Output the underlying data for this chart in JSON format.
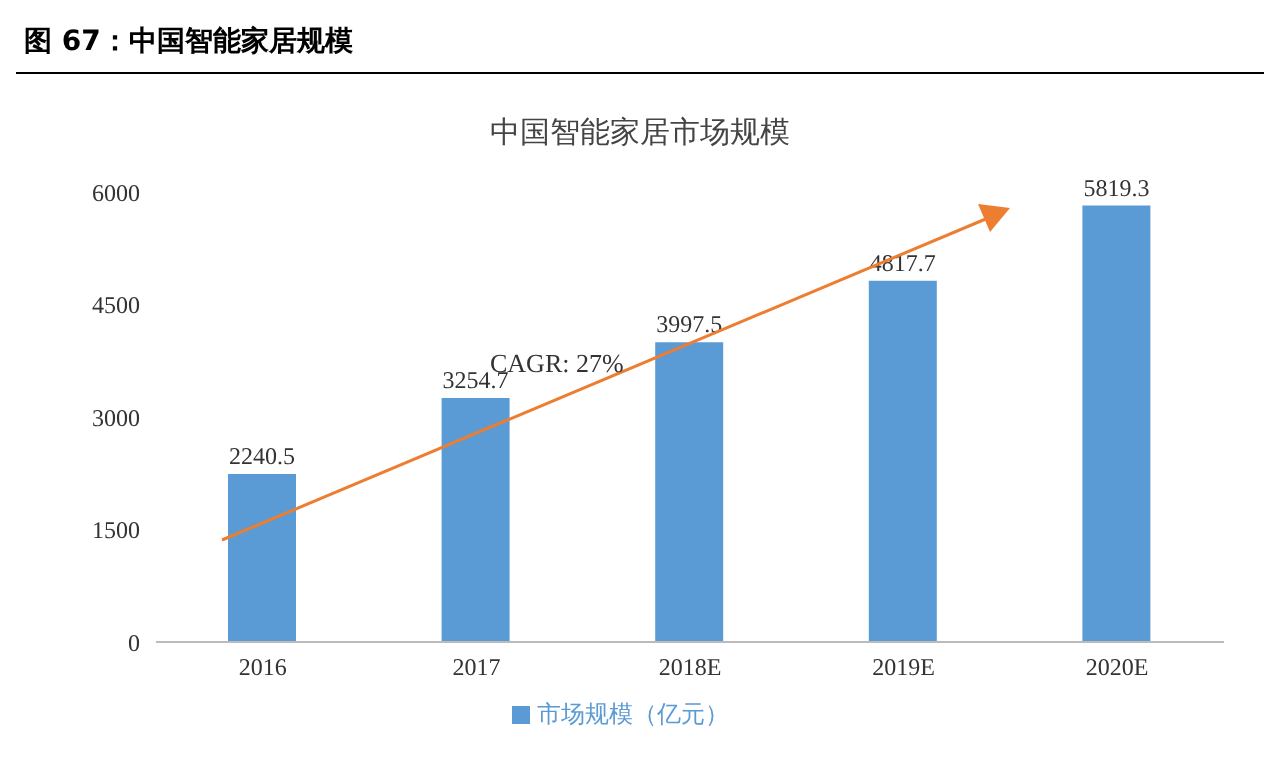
{
  "chart_data": {
    "type": "bar",
    "title": "图 67：中国智能家居规模",
    "subtitle": "中国智能家居市场规模",
    "categories": [
      "2016",
      "2017",
      "2018E",
      "2019E",
      "2020E"
    ],
    "series": [
      {
        "name": "市场规模（亿元）",
        "color": "#5b9bd5",
        "values": [
          2240.5,
          3254.7,
          3997.5,
          4817.7,
          5819.3
        ]
      }
    ],
    "ylim": [
      0,
      6000
    ],
    "yticks": [
      0,
      1500,
      3000,
      4500,
      6000
    ],
    "grid": false,
    "legend": "bottom",
    "data_labels": true,
    "annotations": [
      "CAGR: 27%"
    ]
  }
}
